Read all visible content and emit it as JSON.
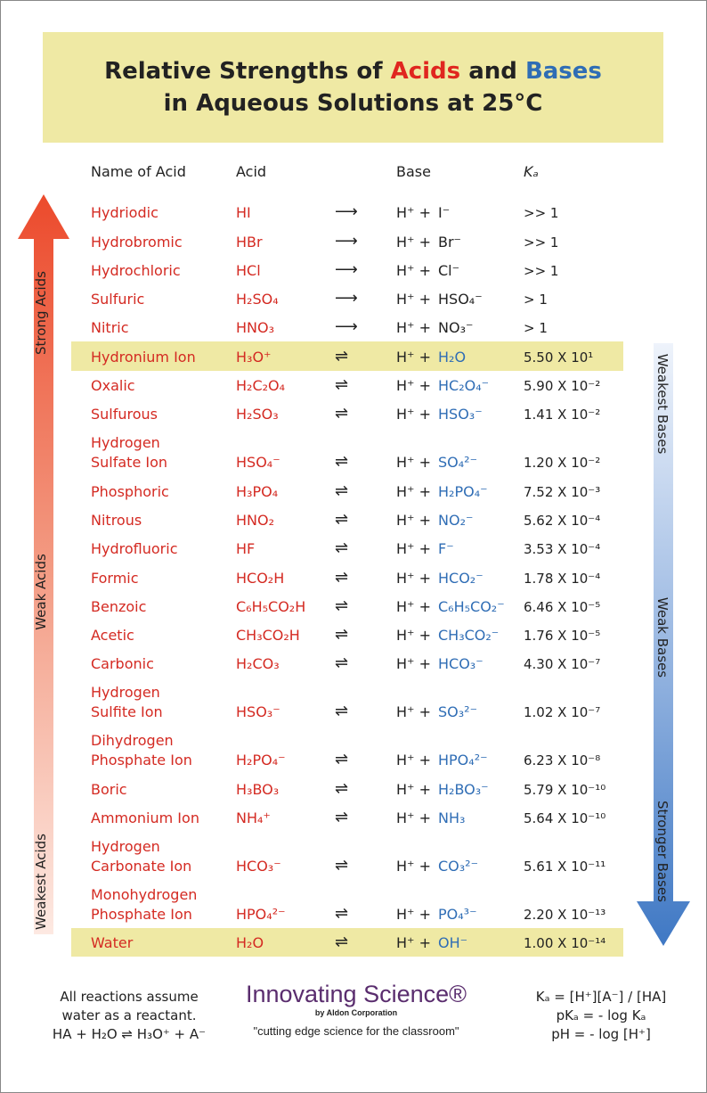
{
  "title": {
    "line1_a": "Relative Strengths of ",
    "line1_acids": "Acids",
    "line1_and": " and ",
    "line1_bases": "Bases",
    "line2": "in Aqueous  Solutions at 25°C"
  },
  "headers": {
    "name": "Name of Acid",
    "acid": "Acid",
    "base": "Base",
    "ka": "Kₐ"
  },
  "side_labels": {
    "strong_acids": "Strong Acids",
    "weak_acids": "Weak Acids",
    "weakest_acids": "Weakest Acids",
    "weakest_bases": "Weakest Bases",
    "weak_bases": "Weak Bases",
    "stronger_bases": "Stronger Bases"
  },
  "colors": {
    "acid_red": "#d42a22",
    "base_blue": "#2f6db5",
    "highlight": "#efe9a4",
    "brand_purple": "#5a2d6e"
  },
  "rows": [
    {
      "name": "Hydriodic",
      "acid": "HI",
      "arrow": "⟶",
      "hplus": "H⁺ +",
      "base": "I⁻",
      "ka": ">> 1",
      "strong": true
    },
    {
      "name": "Hydrobromic",
      "acid": "HBr",
      "arrow": "⟶",
      "hplus": "H⁺ +",
      "base": "Br⁻",
      "ka": ">> 1",
      "strong": true
    },
    {
      "name": "Hydrochloric",
      "acid": "HCl",
      "arrow": "⟶",
      "hplus": "H⁺ +",
      "base": "Cl⁻",
      "ka": ">> 1",
      "strong": true
    },
    {
      "name": "Sulfuric",
      "acid": "H₂SO₄",
      "arrow": "⟶",
      "hplus": "H⁺ +",
      "base": "HSO₄⁻",
      "ka": "> 1",
      "strong": true
    },
    {
      "name": "Nitric",
      "acid": "HNO₃",
      "arrow": "⟶",
      "hplus": "H⁺ +",
      "base": "NO₃⁻",
      "ka": "> 1",
      "strong": true
    },
    {
      "name": "Hydronium Ion",
      "acid": "H₃O⁺",
      "arrow": "⇌",
      "hplus": "H⁺ +",
      "base": "H₂O",
      "ka": "5.50 X 10¹",
      "highlight": true
    },
    {
      "name": "Oxalic",
      "acid": "H₂C₂O₄",
      "arrow": "⇌",
      "hplus": "H⁺ +",
      "base": "HC₂O₄⁻",
      "ka": "5.90 X 10⁻²"
    },
    {
      "name": "Sulfurous",
      "acid": "H₂SO₃",
      "arrow": "⇌",
      "hplus": "H⁺ +",
      "base": "HSO₃⁻",
      "ka": "1.41 X 10⁻²"
    },
    {
      "name_line1": "Hydrogen",
      "name": " Sulfate Ion",
      "acid": "HSO₄⁻",
      "arrow": "⇌",
      "hplus": "H⁺ +",
      "base": "SO₄²⁻",
      "ka": "1.20 X 10⁻²"
    },
    {
      "name": "Phosphoric",
      "acid": "H₃PO₄",
      "arrow": "⇌",
      "hplus": "H⁺ +",
      "base": "H₂PO₄⁻",
      "ka": "7.52 X 10⁻³"
    },
    {
      "name": "Nitrous",
      "acid": "HNO₂",
      "arrow": "⇌",
      "hplus": "H⁺ +",
      "base": "NO₂⁻",
      "ka": "5.62 X 10⁻⁴"
    },
    {
      "name": "Hydrofluoric",
      "acid": "HF",
      "arrow": "⇌",
      "hplus": "H⁺ +",
      "base": "F⁻",
      "ka": "3.53 X 10⁻⁴"
    },
    {
      "name": "Formic",
      "acid": "HCO₂H",
      "arrow": "⇌",
      "hplus": "H⁺ +",
      "base": "HCO₂⁻",
      "ka": "1.78 X 10⁻⁴"
    },
    {
      "name": "Benzoic",
      "acid": "C₆H₅CO₂H",
      "arrow": "⇌",
      "hplus": "H⁺ +",
      "base": "C₆H₅CO₂⁻",
      "ka": "6.46 X 10⁻⁵"
    },
    {
      "name": "Acetic",
      "acid": "CH₃CO₂H",
      "arrow": "⇌",
      "hplus": "H⁺ +",
      "base": "CH₃CO₂⁻",
      "ka": "1.76 X 10⁻⁵"
    },
    {
      "name": "Carbonic",
      "acid": "H₂CO₃",
      "arrow": "⇌",
      "hplus": "H⁺ +",
      "base": "HCO₃⁻",
      "ka": "4.30 X 10⁻⁷"
    },
    {
      "name_line1": "Hydrogen",
      "name": " Sulfite Ion",
      "acid": "HSO₃⁻",
      "arrow": "⇌",
      "hplus": "H⁺ +",
      "base": "SO₃²⁻",
      "ka": "1.02 X 10⁻⁷"
    },
    {
      "name_line1": "Dihydrogen",
      "name": " Phosphate Ion",
      "acid": "H₂PO₄⁻",
      "arrow": "⇌",
      "hplus": "H⁺ +",
      "base": "HPO₄²⁻",
      "ka": "6.23 X 10⁻⁸"
    },
    {
      "name": "Boric",
      "acid": "H₃BO₃",
      "arrow": "⇌",
      "hplus": "H⁺ +",
      "base": "H₂BO₃⁻",
      "ka": "5.79 X 10⁻¹⁰"
    },
    {
      "name": "Ammonium Ion",
      "acid": "NH₄⁺",
      "arrow": "⇌",
      "hplus": "H⁺ +",
      "base": "NH₃",
      "ka": "5.64 X 10⁻¹⁰"
    },
    {
      "name_line1": "Hydrogen",
      "name": " Carbonate Ion",
      "acid": "HCO₃⁻",
      "arrow": "⇌",
      "hplus": "H⁺ +",
      "base": "CO₃²⁻",
      "ka": "5.61 X 10⁻¹¹"
    },
    {
      "name_line1": "Monohydrogen",
      "name": " Phosphate Ion",
      "acid": "HPO₄²⁻",
      "arrow": "⇌",
      "hplus": "H⁺ +",
      "base": "PO₄³⁻",
      "ka": "2.20 X 10⁻¹³"
    },
    {
      "name": "Water",
      "acid": "H₂O",
      "arrow": "⇌",
      "hplus": "H⁺ +",
      "base": "OH⁻",
      "ka": "1.00 X 10⁻¹⁴",
      "highlight": true
    }
  ],
  "footer": {
    "note_line1": "All reactions assume",
    "note_line2": "water as a reactant.",
    "note_equation": "HA + H₂O ⇌ H₃O⁺ + A⁻",
    "brand_name": "Innovating Science®",
    "brand_by": "by Aldon Corporation",
    "tagline": "\"cutting edge science for the classroom\"",
    "eq1": "Kₐ = [H⁺][A⁻] / [HA]",
    "eq2": "pKₐ = - log Kₐ",
    "eq3": "pH = - log [H⁺]"
  }
}
